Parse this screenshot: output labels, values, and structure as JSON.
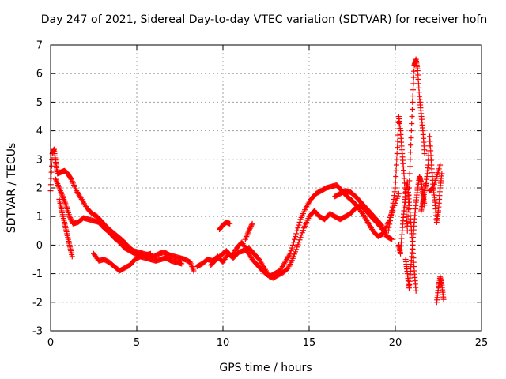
{
  "chart_data": {
    "type": "scatter",
    "title": "Day 247 of 2021, Sidereal Day-to-day VTEC variation (SDTVAR) for receiver hofn",
    "xlabel": "GPS time / hours",
    "ylabel": "SDTVAR / TECUs",
    "xlim": [
      0,
      25
    ],
    "ylim": [
      -3,
      7
    ],
    "xticks": [
      0,
      5,
      10,
      15,
      20,
      25
    ],
    "yticks": [
      -3,
      -2,
      -1,
      0,
      1,
      2,
      3,
      4,
      5,
      6,
      7
    ],
    "grid": true,
    "marker": "+",
    "series": [
      {
        "name": "SDTVAR",
        "color": "#ff0000",
        "segments": [
          {
            "x": [
              0.0,
              0.1,
              0.2,
              0.3,
              0.4,
              0.6,
              0.8,
              1.0,
              1.2,
              1.5,
              1.8,
              2.1,
              2.4,
              2.7,
              3.0,
              3.3,
              3.6,
              3.9,
              4.2,
              4.5,
              4.8,
              5.1,
              5.4,
              5.7,
              6.0,
              6.3,
              6.6,
              6.9,
              7.2,
              7.5,
              7.8,
              8.1,
              8.3
            ],
            "y": [
              1.9,
              3.2,
              3.35,
              2.9,
              2.5,
              2.55,
              2.6,
              2.5,
              2.3,
              1.9,
              1.6,
              1.3,
              1.1,
              1.0,
              0.8,
              0.6,
              0.45,
              0.3,
              0.15,
              -0.05,
              -0.2,
              -0.25,
              -0.3,
              -0.35,
              -0.4,
              -0.3,
              -0.25,
              -0.35,
              -0.4,
              -0.45,
              -0.5,
              -0.6,
              -0.9
            ]
          },
          {
            "x": [
              0.3,
              0.5,
              0.7,
              0.9,
              1.1,
              1.3,
              1.6,
              1.9,
              2.2,
              2.5,
              2.8,
              3.1,
              3.4,
              3.7,
              4.0,
              4.3,
              4.6,
              4.9,
              5.2,
              5.5,
              5.8,
              6.1,
              6.4,
              6.7,
              7.0,
              7.3,
              7.6
            ],
            "y": [
              2.3,
              2.0,
              1.7,
              1.4,
              1.0,
              0.75,
              0.8,
              0.95,
              0.9,
              0.85,
              0.8,
              0.6,
              0.45,
              0.25,
              0.1,
              -0.1,
              -0.2,
              -0.3,
              -0.4,
              -0.45,
              -0.5,
              -0.55,
              -0.5,
              -0.45,
              -0.55,
              -0.6,
              -0.65
            ]
          },
          {
            "x": [
              0.5,
              0.65,
              0.8,
              0.95,
              1.1,
              1.25
            ],
            "y": [
              1.6,
              1.2,
              0.8,
              0.4,
              0.0,
              -0.4
            ]
          },
          {
            "x": [
              2.5,
              2.8,
              3.1,
              3.4,
              3.7,
              4.0,
              4.3,
              4.6,
              4.9,
              5.2,
              5.5,
              5.8
            ],
            "y": [
              -0.3,
              -0.55,
              -0.5,
              -0.6,
              -0.75,
              -0.9,
              -0.8,
              -0.7,
              -0.5,
              -0.4,
              -0.35,
              -0.3
            ]
          },
          {
            "x": [
              8.5,
              8.8,
              9.1,
              9.4,
              9.7,
              10.0,
              10.3,
              10.6,
              10.9,
              11.2,
              11.5,
              11.8,
              12.1,
              12.4,
              12.7,
              13.0,
              13.3,
              13.6,
              13.9,
              14.2,
              14.5,
              14.8,
              15.1,
              15.4,
              15.7,
              16.0,
              16.3,
              16.6,
              16.9,
              17.2,
              17.5,
              17.8,
              18.1,
              18.4,
              18.7,
              19.0,
              19.3,
              19.6,
              19.9,
              20.2
            ],
            "y": [
              -0.75,
              -0.65,
              -0.5,
              -0.55,
              -0.4,
              -0.6,
              -0.3,
              -0.45,
              -0.25,
              -0.2,
              -0.1,
              -0.3,
              -0.5,
              -0.8,
              -1.1,
              -1.0,
              -0.9,
              -0.6,
              -0.3,
              0.3,
              0.9,
              1.3,
              1.6,
              1.8,
              1.9,
              2.0,
              2.05,
              2.1,
              1.9,
              1.7,
              1.55,
              1.35,
              1.1,
              0.8,
              0.5,
              0.3,
              0.4,
              0.8,
              1.3,
              1.8
            ]
          },
          {
            "x": [
              9.3,
              9.6,
              9.9,
              10.2,
              10.5,
              10.8,
              11.1,
              11.4,
              11.7,
              12.0,
              12.3,
              12.6,
              12.9,
              13.2,
              13.5,
              13.8,
              14.1,
              14.4,
              14.7,
              15.0,
              15.3,
              15.6,
              15.9,
              16.2,
              16.5,
              16.8,
              17.1,
              17.4,
              17.7,
              18.0,
              18.3,
              18.6,
              18.9,
              19.2,
              19.5
            ],
            "y": [
              -0.7,
              -0.5,
              -0.35,
              -0.2,
              -0.4,
              -0.1,
              0.1,
              -0.2,
              -0.5,
              -0.7,
              -0.9,
              -1.05,
              -1.15,
              -1.05,
              -0.95,
              -0.8,
              -0.4,
              0.1,
              0.6,
              1.0,
              1.2,
              1.0,
              0.9,
              1.1,
              1.0,
              0.9,
              1.0,
              1.1,
              1.3,
              1.4,
              1.2,
              1.0,
              0.8,
              0.6,
              0.3
            ]
          },
          {
            "x": [
              9.8,
              10.0,
              10.2,
              10.4
            ],
            "y": [
              0.55,
              0.7,
              0.8,
              0.75
            ]
          },
          {
            "x": [
              11.3,
              11.5,
              11.7
            ],
            "y": [
              0.2,
              0.5,
              0.75
            ]
          },
          {
            "x": [
              16.5,
              16.8,
              17.1,
              17.4,
              17.7,
              18.0,
              18.3,
              18.6,
              18.9,
              19.2,
              19.5,
              19.8
            ],
            "y": [
              1.7,
              1.8,
              1.9,
              1.85,
              1.7,
              1.5,
              1.3,
              1.1,
              0.9,
              0.7,
              0.3,
              0.2
            ]
          },
          {
            "x": [
              19.6,
              19.8,
              20.0,
              20.1,
              20.2,
              20.3,
              20.4,
              20.5,
              20.6,
              20.7,
              20.8,
              20.9,
              21.0,
              21.1,
              21.2,
              21.3,
              21.4,
              21.5,
              21.6,
              21.7
            ],
            "y": [
              0.5,
              1.2,
              2.0,
              3.2,
              4.5,
              4.0,
              3.2,
              2.5,
              1.5,
              0.5,
              2.0,
              3.5,
              5.0,
              6.3,
              6.5,
              6.1,
              5.2,
              4.6,
              4.0,
              3.2
            ]
          },
          {
            "x": [
              20.2,
              20.3,
              20.4,
              20.5,
              20.6,
              20.7,
              20.8,
              20.9,
              21.0,
              21.1,
              21.2
            ],
            "y": [
              0.0,
              -0.3,
              0.5,
              1.2,
              1.8,
              2.2,
              1.5,
              0.8,
              0.0,
              -0.9,
              -1.6
            ]
          },
          {
            "x": [
              20.6,
              20.7,
              20.8,
              20.9,
              21.0,
              21.1,
              21.2,
              21.3,
              21.4,
              21.5,
              21.6,
              21.7
            ],
            "y": [
              -0.5,
              -1.0,
              -1.5,
              -0.8,
              0.0,
              0.8,
              1.5,
              2.0,
              2.4,
              2.2,
              1.8,
              1.4
            ]
          },
          {
            "x": [
              21.5,
              21.6,
              21.7,
              21.8,
              21.9,
              22.0,
              22.1,
              22.2,
              22.3,
              22.4,
              22.5,
              22.6,
              22.7
            ],
            "y": [
              1.2,
              1.5,
              1.9,
              2.2,
              2.8,
              3.8,
              2.8,
              2.0,
              1.5,
              0.8,
              1.2,
              2.0,
              2.5
            ]
          },
          {
            "x": [
              22.0,
              22.2,
              22.4,
              22.6
            ],
            "y": [
              1.9,
              2.0,
              2.4,
              2.8
            ]
          },
          {
            "x": [
              22.4,
              22.5,
              22.6,
              22.7,
              22.8
            ],
            "y": [
              -2.0,
              -1.5,
              -1.1,
              -1.4,
              -1.9
            ]
          }
        ]
      }
    ]
  }
}
